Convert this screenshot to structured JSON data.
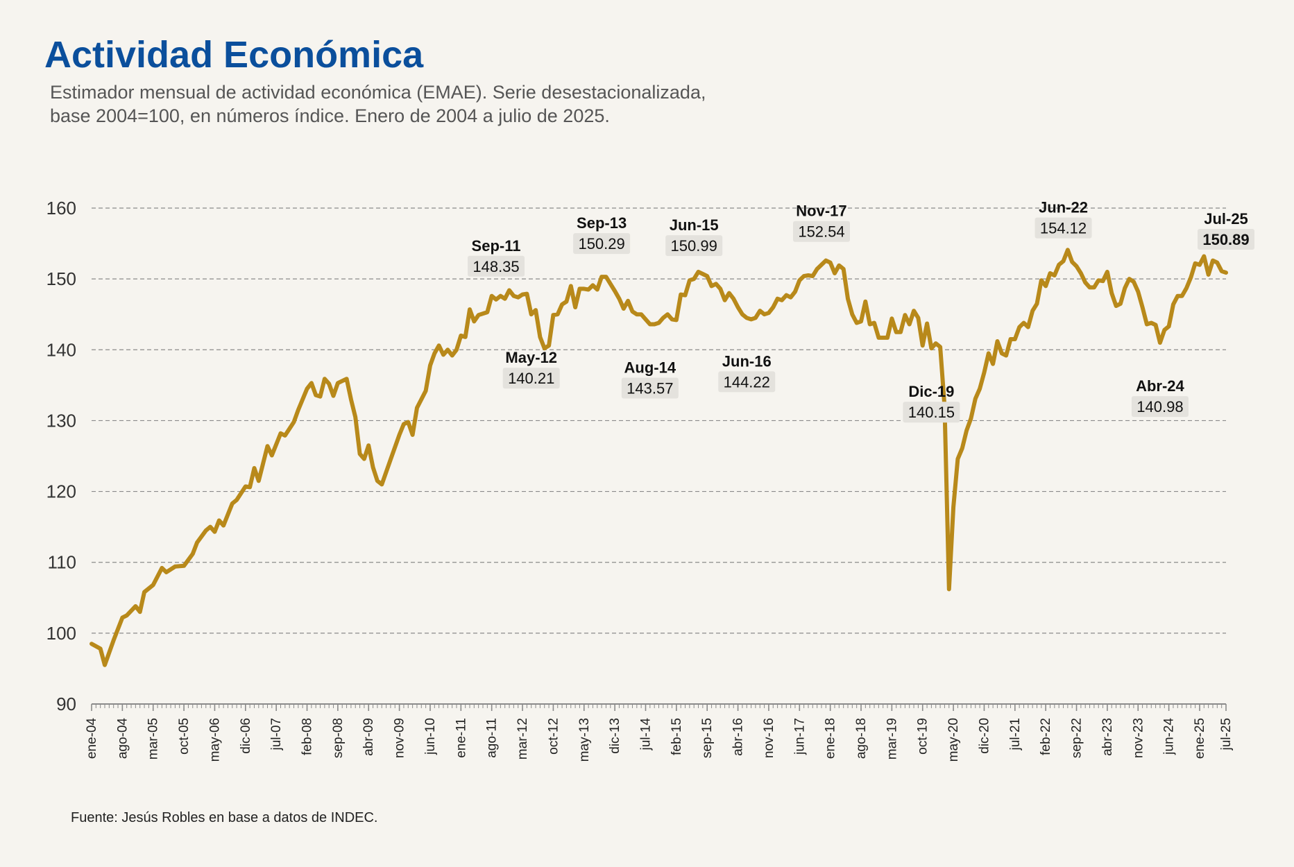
{
  "header": {
    "title": "Actividad Económica",
    "subtitle_line1": "Estimador mensual de actividad económica (EMAE). Serie desestacionalizada,",
    "subtitle_line2": "base 2004=100, en números índice. Enero de 2004 a julio de 2025."
  },
  "footer": {
    "source": "Fuente: Jesús Robles en base a datos de INDEC."
  },
  "chart_data": {
    "type": "line",
    "title": "Actividad Económica",
    "xlabel": "",
    "ylabel": "",
    "ylim": [
      90,
      160
    ],
    "yticks": [
      90,
      100,
      110,
      120,
      130,
      140,
      150,
      160
    ],
    "grid": "horizontal dashed",
    "line_color": "#b8891a",
    "x_start": "2004-01",
    "x_end": "2025-07",
    "x_tick_labels": [
      "ene-04",
      "ago-04",
      "mar-05",
      "oct-05",
      "may-06",
      "dic-06",
      "jul-07",
      "feb-08",
      "sep-08",
      "abr-09",
      "nov-09",
      "jun-10",
      "ene-11",
      "ago-11",
      "mar-12",
      "oct-12",
      "may-13",
      "dic-13",
      "jul-14",
      "feb-15",
      "sep-15",
      "abr-16",
      "nov-16",
      "jun-17",
      "ene-18",
      "ago-18",
      "mar-19",
      "oct-19",
      "may-20",
      "dic-20",
      "jul-21",
      "feb-22",
      "sep-22",
      "abr-23",
      "nov-23",
      "jun-24",
      "ene-25",
      "jul-25"
    ],
    "series": [
      {
        "points": [
          [
            "2004-01",
            98.5
          ],
          [
            "2004-03",
            97.8
          ],
          [
            "2004-04",
            95.5
          ],
          [
            "2004-06",
            99.0
          ],
          [
            "2004-08",
            102.2
          ],
          [
            "2004-09",
            102.5
          ],
          [
            "2004-11",
            103.8
          ],
          [
            "2004-12",
            103.0
          ],
          [
            "2005-01",
            105.8
          ],
          [
            "2005-03",
            106.8
          ],
          [
            "2005-05",
            109.2
          ],
          [
            "2005-06",
            108.6
          ],
          [
            "2005-08",
            109.4
          ],
          [
            "2005-10",
            109.5
          ],
          [
            "2005-12",
            111.2
          ],
          [
            "2006-01",
            112.8
          ],
          [
            "2006-03",
            114.5
          ],
          [
            "2006-04",
            115.0
          ],
          [
            "2006-05",
            114.3
          ],
          [
            "2006-06",
            115.9
          ],
          [
            "2006-07",
            115.2
          ],
          [
            "2006-09",
            118.3
          ],
          [
            "2006-10",
            118.8
          ],
          [
            "2006-12",
            120.7
          ],
          [
            "2007-01",
            120.6
          ],
          [
            "2007-02",
            123.3
          ],
          [
            "2007-03",
            121.5
          ],
          [
            "2007-05",
            126.4
          ],
          [
            "2007-06",
            125.1
          ],
          [
            "2007-08",
            128.2
          ],
          [
            "2007-09",
            127.9
          ],
          [
            "2007-11",
            129.8
          ],
          [
            "2007-12",
            131.5
          ],
          [
            "2008-02",
            134.5
          ],
          [
            "2008-03",
            135.3
          ],
          [
            "2008-04",
            133.6
          ],
          [
            "2008-05",
            133.4
          ],
          [
            "2008-06",
            135.9
          ],
          [
            "2008-07",
            135.2
          ],
          [
            "2008-08",
            133.5
          ],
          [
            "2008-09",
            135.3
          ],
          [
            "2008-11",
            135.9
          ],
          [
            "2008-12",
            133.0
          ],
          [
            "2009-01",
            130.5
          ],
          [
            "2009-02",
            125.3
          ],
          [
            "2009-03",
            124.6
          ],
          [
            "2009-04",
            126.5
          ],
          [
            "2009-05",
            123.4
          ],
          [
            "2009-06",
            121.5
          ],
          [
            "2009-07",
            121.0
          ],
          [
            "2009-09",
            124.5
          ],
          [
            "2009-11",
            128.0
          ],
          [
            "2009-12",
            129.5
          ],
          [
            "2010-01",
            129.8
          ],
          [
            "2010-02",
            128.0
          ],
          [
            "2010-03",
            131.8
          ],
          [
            "2010-05",
            134.2
          ],
          [
            "2010-06",
            137.8
          ],
          [
            "2010-07",
            139.5
          ],
          [
            "2010-08",
            140.6
          ],
          [
            "2010-09",
            139.3
          ],
          [
            "2010-10",
            140.0
          ],
          [
            "2010-11",
            139.2
          ],
          [
            "2010-12",
            140.0
          ],
          [
            "2011-01",
            142.0
          ],
          [
            "2011-02",
            141.8
          ],
          [
            "2011-03",
            145.7
          ],
          [
            "2011-04",
            144.0
          ],
          [
            "2011-05",
            144.9
          ],
          [
            "2011-07",
            145.3
          ],
          [
            "2011-08",
            147.6
          ],
          [
            "2011-09",
            147.1
          ],
          [
            "2011-10",
            147.6
          ],
          [
            "2011-11",
            147.2
          ],
          [
            "2011-12",
            148.4
          ],
          [
            "2012-01",
            147.6
          ],
          [
            "2012-02",
            147.4
          ],
          [
            "2012-03",
            147.8
          ],
          [
            "2012-04",
            147.9
          ],
          [
            "2012-05",
            145.0
          ],
          [
            "2012-06",
            145.6
          ],
          [
            "2012-07",
            141.8
          ],
          [
            "2012-08",
            140.2
          ],
          [
            "2012-09",
            140.6
          ],
          [
            "2012-10",
            144.9
          ],
          [
            "2012-11",
            145.0
          ],
          [
            "2012-12",
            146.4
          ],
          [
            "2013-01",
            146.8
          ],
          [
            "2013-02",
            149.0
          ],
          [
            "2013-03",
            146.0
          ],
          [
            "2013-04",
            148.6
          ],
          [
            "2013-05",
            148.6
          ],
          [
            "2013-06",
            148.5
          ],
          [
            "2013-07",
            149.1
          ],
          [
            "2013-08",
            148.5
          ],
          [
            "2013-09",
            150.3
          ],
          [
            "2013-10",
            150.3
          ],
          [
            "2013-11",
            149.3
          ],
          [
            "2013-12",
            148.3
          ],
          [
            "2014-01",
            147.2
          ],
          [
            "2014-02",
            145.8
          ],
          [
            "2014-03",
            146.9
          ],
          [
            "2014-04",
            145.4
          ],
          [
            "2014-05",
            145.0
          ],
          [
            "2014-06",
            145.0
          ],
          [
            "2014-07",
            144.3
          ],
          [
            "2014-08",
            143.6
          ],
          [
            "2014-09",
            143.6
          ],
          [
            "2014-10",
            143.8
          ],
          [
            "2014-11",
            144.5
          ],
          [
            "2014-12",
            145.0
          ],
          [
            "2015-01",
            144.3
          ],
          [
            "2015-02",
            144.2
          ],
          [
            "2015-03",
            147.8
          ],
          [
            "2015-04",
            147.7
          ],
          [
            "2015-05",
            149.8
          ],
          [
            "2015-06",
            150.0
          ],
          [
            "2015-07",
            151.0
          ],
          [
            "2015-08",
            150.7
          ],
          [
            "2015-09",
            150.4
          ],
          [
            "2015-10",
            149.0
          ],
          [
            "2015-11",
            149.3
          ],
          [
            "2015-12",
            148.6
          ],
          [
            "2016-01",
            147.0
          ],
          [
            "2016-02",
            148.0
          ],
          [
            "2016-03",
            147.2
          ],
          [
            "2016-04",
            146.0
          ],
          [
            "2016-05",
            145.0
          ],
          [
            "2016-06",
            144.5
          ],
          [
            "2016-07",
            144.3
          ],
          [
            "2016-08",
            144.5
          ],
          [
            "2016-09",
            145.5
          ],
          [
            "2016-10",
            145.0
          ],
          [
            "2016-11",
            145.2
          ],
          [
            "2016-12",
            146.0
          ],
          [
            "2017-01",
            147.2
          ],
          [
            "2017-02",
            147.0
          ],
          [
            "2017-03",
            147.7
          ],
          [
            "2017-04",
            147.4
          ],
          [
            "2017-05",
            148.2
          ],
          [
            "2017-06",
            149.8
          ],
          [
            "2017-07",
            150.4
          ],
          [
            "2017-08",
            150.5
          ],
          [
            "2017-09",
            150.4
          ],
          [
            "2017-10",
            151.4
          ],
          [
            "2017-11",
            152.0
          ],
          [
            "2017-12",
            152.6
          ],
          [
            "2018-01",
            152.3
          ],
          [
            "2018-02",
            150.8
          ],
          [
            "2018-03",
            151.9
          ],
          [
            "2018-04",
            151.4
          ],
          [
            "2018-05",
            147.2
          ],
          [
            "2018-06",
            145.0
          ],
          [
            "2018-07",
            143.8
          ],
          [
            "2018-08",
            144.0
          ],
          [
            "2018-09",
            146.8
          ],
          [
            "2018-10",
            143.6
          ],
          [
            "2018-11",
            143.8
          ],
          [
            "2018-12",
            141.7
          ],
          [
            "2019-01",
            141.7
          ],
          [
            "2019-02",
            141.7
          ],
          [
            "2019-03",
            144.4
          ],
          [
            "2019-04",
            142.5
          ],
          [
            "2019-05",
            142.5
          ],
          [
            "2019-06",
            144.9
          ],
          [
            "2019-07",
            143.6
          ],
          [
            "2019-08",
            145.5
          ],
          [
            "2019-09",
            144.5
          ],
          [
            "2019-10",
            140.6
          ],
          [
            "2019-11",
            143.7
          ],
          [
            "2019-12",
            140.2
          ],
          [
            "2020-01",
            140.9
          ],
          [
            "2020-02",
            140.4
          ],
          [
            "2020-03",
            132.0
          ],
          [
            "2020-04",
            106.2
          ],
          [
            "2020-05",
            117.8
          ],
          [
            "2020-06",
            124.6
          ],
          [
            "2020-07",
            126.1
          ],
          [
            "2020-08",
            128.6
          ],
          [
            "2020-09",
            130.3
          ],
          [
            "2020-10",
            133.1
          ],
          [
            "2020-11",
            134.5
          ],
          [
            "2020-12",
            136.8
          ],
          [
            "2021-01",
            139.5
          ],
          [
            "2021-02",
            138.0
          ],
          [
            "2021-03",
            141.2
          ],
          [
            "2021-04",
            139.5
          ],
          [
            "2021-05",
            139.2
          ],
          [
            "2021-06",
            141.5
          ],
          [
            "2021-07",
            141.5
          ],
          [
            "2021-08",
            143.2
          ],
          [
            "2021-09",
            143.8
          ],
          [
            "2021-10",
            143.2
          ],
          [
            "2021-11",
            145.5
          ],
          [
            "2021-12",
            146.5
          ],
          [
            "2022-01",
            149.8
          ],
          [
            "2022-02",
            149.0
          ],
          [
            "2022-03",
            150.8
          ],
          [
            "2022-04",
            150.5
          ],
          [
            "2022-05",
            152.0
          ],
          [
            "2022-06",
            152.5
          ],
          [
            "2022-07",
            154.1
          ],
          [
            "2022-08",
            152.4
          ],
          [
            "2022-09",
            151.8
          ],
          [
            "2022-10",
            150.8
          ],
          [
            "2022-11",
            149.5
          ],
          [
            "2022-12",
            148.8
          ],
          [
            "2023-01",
            148.8
          ],
          [
            "2023-02",
            149.8
          ],
          [
            "2023-03",
            149.7
          ],
          [
            "2023-04",
            151.0
          ],
          [
            "2023-05",
            148.0
          ],
          [
            "2023-06",
            146.2
          ],
          [
            "2023-07",
            146.5
          ],
          [
            "2023-08",
            148.7
          ],
          [
            "2023-09",
            150.0
          ],
          [
            "2023-10",
            149.6
          ],
          [
            "2023-11",
            148.2
          ],
          [
            "2023-12",
            146.0
          ],
          [
            "2024-01",
            143.6
          ],
          [
            "2024-02",
            143.8
          ],
          [
            "2024-03",
            143.5
          ],
          [
            "2024-04",
            141.0
          ],
          [
            "2024-05",
            142.8
          ],
          [
            "2024-06",
            143.3
          ],
          [
            "2024-07",
            146.4
          ],
          [
            "2024-08",
            147.6
          ],
          [
            "2024-09",
            147.6
          ],
          [
            "2024-10",
            148.7
          ],
          [
            "2024-11",
            150.2
          ],
          [
            "2024-12",
            152.2
          ],
          [
            "2025-01",
            152.0
          ],
          [
            "2025-02",
            153.2
          ],
          [
            "2025-03",
            150.6
          ],
          [
            "2025-04",
            152.6
          ],
          [
            "2025-05",
            152.3
          ],
          [
            "2025-06",
            151.1
          ],
          [
            "2025-07",
            150.89
          ]
        ]
      }
    ],
    "annotations": [
      {
        "date": "2011-09",
        "label": "Sep-11",
        "value": "148.35",
        "pos": "above"
      },
      {
        "date": "2012-05",
        "label": "May-12",
        "value": "140.21",
        "pos": "below"
      },
      {
        "date": "2013-09",
        "label": "Sep-13",
        "value": "150.29",
        "pos": "above"
      },
      {
        "date": "2014-08",
        "label": "Aug-14",
        "value": "143.57",
        "pos": "below"
      },
      {
        "date": "2015-06",
        "label": "Jun-15",
        "value": "150.99",
        "pos": "above"
      },
      {
        "date": "2016-06",
        "label": "Jun-16",
        "value": "144.22",
        "pos": "below"
      },
      {
        "date": "2017-11",
        "label": "Nov-17",
        "value": "152.54",
        "pos": "above"
      },
      {
        "date": "2019-12",
        "label": "Dic-19",
        "value": "140.15",
        "pos": "below"
      },
      {
        "date": "2022-06",
        "label": "Jun-22",
        "value": "154.12",
        "pos": "above"
      },
      {
        "date": "2024-04",
        "label": "Abr-24",
        "value": "140.98",
        "pos": "below"
      },
      {
        "date": "2025-07",
        "label": "Jul-25",
        "value": "150.89",
        "pos": "above",
        "bold": true
      }
    ]
  }
}
